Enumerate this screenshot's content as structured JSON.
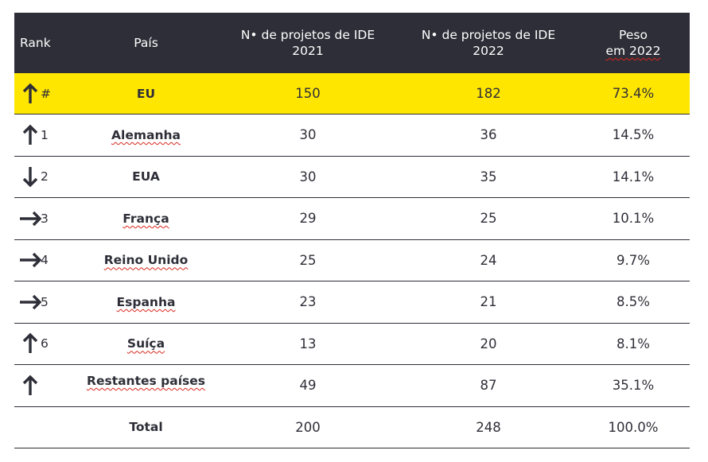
{
  "header": {
    "rank": "Rank",
    "country": "País",
    "projects_2021_line1": "N• de projetos de IDE",
    "projects_2021_line2": "2021",
    "projects_2022_line1": "N• de projetos de IDE",
    "projects_2022_line2": "2022",
    "weight_line1": "Peso",
    "weight_line2": "em 2022"
  },
  "rows": [
    {
      "arrow": "up-arrow-icon",
      "rank": "#",
      "country": "EU",
      "p2021": "150",
      "p2022": "182",
      "weight": "73.4%"
    },
    {
      "arrow": "up-arrow-icon",
      "rank": "1",
      "country": "Alemanha",
      "p2021": "30",
      "p2022": "36",
      "weight": "14.5%"
    },
    {
      "arrow": "down-arrow-icon",
      "rank": "2",
      "country": "EUA",
      "p2021": "30",
      "p2022": "35",
      "weight": "14.1%"
    },
    {
      "arrow": "right-arrow-icon",
      "rank": "3",
      "country": "França",
      "p2021": "29",
      "p2022": "25",
      "weight": "10.1%"
    },
    {
      "arrow": "right-arrow-icon",
      "rank": "4",
      "country": "Reino Unido",
      "p2021": "25",
      "p2022": "24",
      "weight": "9.7%"
    },
    {
      "arrow": "right-arrow-icon",
      "rank": "5",
      "country": "Espanha",
      "p2021": "23",
      "p2022": "21",
      "weight": "8.5%"
    },
    {
      "arrow": "up-arrow-icon",
      "rank": "6",
      "country": "Suíça",
      "p2021": "13",
      "p2022": "20",
      "weight": "8.1%"
    },
    {
      "arrow": "up-arrow-icon",
      "rank": "",
      "country": "Restantes países",
      "p2021": "49",
      "p2022": "87",
      "weight": "35.1%"
    }
  ],
  "total": {
    "label": "Total",
    "p2021": "200",
    "p2022": "248",
    "weight": "100.0%"
  },
  "colors": {
    "header_bg": "#2e2e38",
    "highlight": "#ffe600",
    "text": "#2e2e38"
  }
}
